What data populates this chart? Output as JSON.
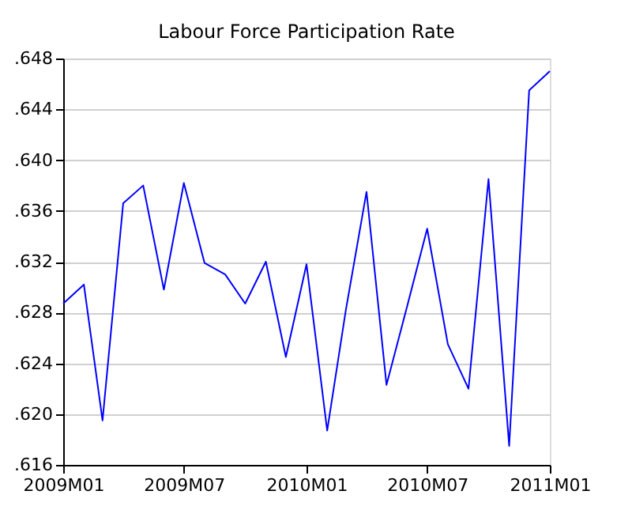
{
  "chart_data": {
    "type": "line",
    "title": "Labour Force Participation Rate",
    "x": [
      "2009-01",
      "2009-02",
      "2009-03",
      "2009-04",
      "2009-05",
      "2009-06",
      "2009-07",
      "2009-08",
      "2009-09",
      "2009-10",
      "2009-11",
      "2009-12",
      "2010-01",
      "2010-02",
      "2010-03",
      "2010-04",
      "2010-05",
      "2010-06",
      "2010-07",
      "2010-08",
      "2010-09",
      "2010-10",
      "2010-11",
      "2010-12",
      "2011-01"
    ],
    "series": [
      {
        "color": "#0000ff",
        "values": [
          0.6287,
          0.6302,
          0.6195,
          0.6366,
          0.638,
          0.6298,
          0.6382,
          0.6319,
          0.631,
          0.6287,
          0.632,
          0.6245,
          0.6318,
          0.6187,
          0.6282,
          0.6375,
          0.6223,
          0.6285,
          0.6346,
          0.6255,
          0.622,
          0.6385,
          0.6175,
          0.6455,
          0.647
        ]
      }
    ],
    "xlim": [
      "2009-01",
      "2011-01"
    ],
    "xticks": [
      {
        "value": "2009-01",
        "label": "2009M01"
      },
      {
        "value": "2009-07",
        "label": "2009M07"
      },
      {
        "value": "2010-01",
        "label": "2010M01"
      },
      {
        "value": "2010-07",
        "label": "2010M07"
      },
      {
        "value": "2011-01",
        "label": "2011M01"
      }
    ],
    "ylim": [
      0.616,
      0.648
    ],
    "yticks": [
      {
        "value": 0.616,
        "label": ".616"
      },
      {
        "value": 0.62,
        "label": ".620"
      },
      {
        "value": 0.624,
        "label": ".624"
      },
      {
        "value": 0.628,
        "label": ".628"
      },
      {
        "value": 0.632,
        "label": ".632"
      },
      {
        "value": 0.636,
        "label": ".636"
      },
      {
        "value": 0.64,
        "label": ".640"
      },
      {
        "value": 0.644,
        "label": ".644"
      },
      {
        "value": 0.648,
        "label": ".648"
      }
    ],
    "grid": "y",
    "marker": "none",
    "line_style": "solid"
  }
}
